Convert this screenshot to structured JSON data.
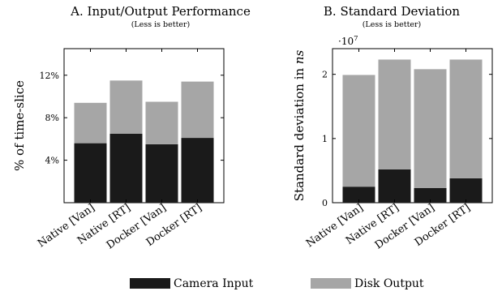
{
  "legend": [
    {
      "label": "Camera Input",
      "color": "#1a1a1a"
    },
    {
      "label": "Disk Output",
      "color": "#a6a6a6"
    }
  ],
  "chart_data": [
    {
      "type": "bar",
      "stacked": true,
      "title": "A. Input/Output Performance",
      "subtitle": "(Less is better)",
      "ylabel": "% of time-slice",
      "categories": [
        "Native [Van]",
        "Native [RT]",
        "Docker [Van]",
        "Docker [RT]"
      ],
      "ylim": [
        0,
        14.5
      ],
      "yticks": [
        4,
        8,
        12
      ],
      "ytick_labels": [
        "4%",
        "8%",
        "12%"
      ],
      "series": [
        {
          "name": "Camera Input",
          "color": "#1a1a1a",
          "values": [
            5.6,
            6.5,
            5.5,
            6.1
          ]
        },
        {
          "name": "Disk Output",
          "color": "#a6a6a6",
          "values": [
            3.8,
            5.0,
            4.0,
            5.3
          ]
        }
      ]
    },
    {
      "type": "bar",
      "stacked": true,
      "title": "B. Standard Deviation",
      "subtitle": "(Less is better)",
      "ylabel": "Standard deviation in",
      "ylabel_unit": "ns",
      "multiplier": "·10",
      "multiplier_exp": "7",
      "categories": [
        "Native [Van]",
        "Native [RT]",
        "Docker [Van]",
        "Docker [RT]"
      ],
      "ylim": [
        0,
        2.4
      ],
      "yticks": [
        0,
        1,
        2
      ],
      "ytick_labels": [
        "0",
        "1",
        "2"
      ],
      "series": [
        {
          "name": "Camera Input",
          "color": "#1a1a1a",
          "values": [
            0.25,
            0.52,
            0.23,
            0.38
          ]
        },
        {
          "name": "Disk Output",
          "color": "#a6a6a6",
          "values": [
            1.74,
            1.71,
            1.85,
            1.85
          ]
        }
      ]
    }
  ]
}
